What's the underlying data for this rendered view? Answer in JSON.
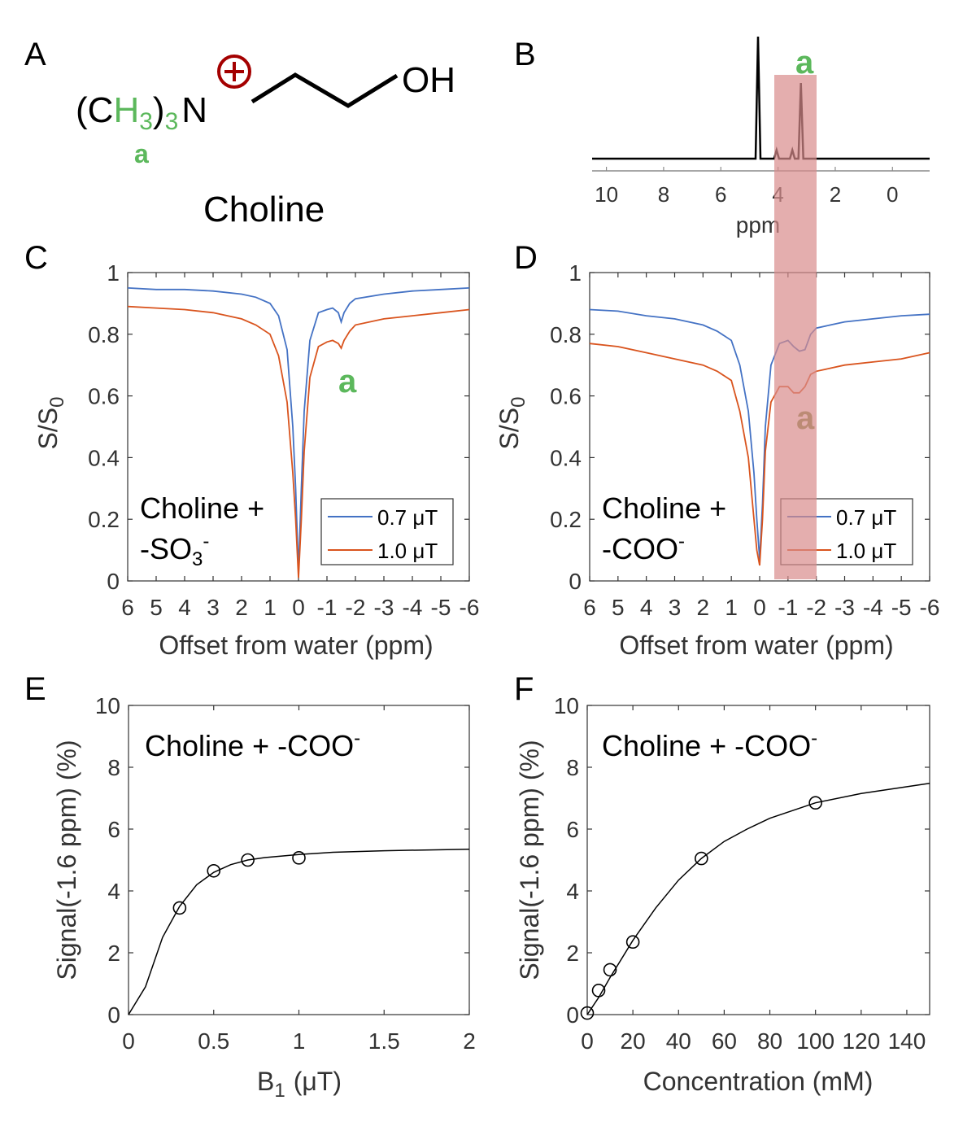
{
  "panel_letters": [
    "A",
    "B",
    "C",
    "D",
    "E",
    "F"
  ],
  "colors": {
    "blue": "#4472c4",
    "red": "#d9541e",
    "green": "#5cb85c",
    "highlight": "#d98c8c",
    "darkred": "#a40000",
    "black": "#000000"
  },
  "molecule": {
    "group_open": "(C",
    "h3": "H",
    "h3_sub": "3",
    "group_close": ")",
    "group_sub": "3",
    "nitrogen": "N",
    "charge_symbol": "⊕",
    "hydroxyl": "OH",
    "label_a": "a",
    "name": "Choline"
  },
  "chart_data": [
    {
      "id": "B",
      "type": "line",
      "title": "",
      "xlabel": "ppm",
      "ylabel": "",
      "xlim": [
        10.5,
        -1.3
      ],
      "xticks": [
        10,
        8,
        6,
        4,
        2,
        0
      ],
      "xtick_labels": [
        "10",
        "8",
        "6",
        "4",
        "2",
        "0"
      ],
      "highlight_range_ppm": [
        4.1,
        2.6
      ],
      "highlight_label": "a",
      "peaks": [
        {
          "ppm": 4.7,
          "height": 1.0
        },
        {
          "ppm": 4.05,
          "height": 0.07
        },
        {
          "ppm": 3.5,
          "height": 0.07
        },
        {
          "ppm": 3.2,
          "height": 0.62
        }
      ]
    },
    {
      "id": "C",
      "type": "line",
      "xlabel": "Offset from water (ppm)",
      "ylabel": "S/S",
      "ylabel_sub": "0",
      "xlim": [
        6,
        -6
      ],
      "ylim": [
        0,
        1
      ],
      "xticks": [
        6,
        5,
        4,
        3,
        2,
        1,
        0,
        -1,
        -2,
        -3,
        -4,
        -5,
        -6
      ],
      "xtick_labels": [
        "6",
        "5",
        "4",
        "3",
        "2",
        "1",
        "0",
        "-1",
        "-2",
        "-3",
        "-4",
        "-5",
        "-6"
      ],
      "yticks": [
        0,
        0.2,
        0.4,
        0.6,
        0.8,
        1
      ],
      "ytick_labels": [
        "0",
        "0.2",
        "0.4",
        "0.6",
        "0.8",
        "1"
      ],
      "annotation": "Choline +",
      "annotation_line2": "-SO",
      "annotation_sub": "3",
      "annotation_sup": "-",
      "peak_label": "a",
      "series": [
        {
          "name": "0.7 μT",
          "color": "#4472c4",
          "x": [
            6,
            5,
            4,
            3,
            2,
            1.5,
            1,
            0.7,
            0.4,
            0.2,
            0.1,
            0,
            -0.1,
            -0.2,
            -0.4,
            -0.7,
            -1,
            -1.2,
            -1.4,
            -1.5,
            -1.6,
            -1.8,
            -2,
            -3,
            -4,
            -5,
            -6
          ],
          "y": [
            0.95,
            0.945,
            0.945,
            0.94,
            0.93,
            0.92,
            0.9,
            0.86,
            0.75,
            0.5,
            0.3,
            0.03,
            0.3,
            0.55,
            0.78,
            0.87,
            0.88,
            0.885,
            0.87,
            0.84,
            0.87,
            0.9,
            0.915,
            0.93,
            0.94,
            0.945,
            0.95
          ]
        },
        {
          "name": "1.0 μT",
          "color": "#d9541e",
          "x": [
            6,
            5,
            4,
            3,
            2,
            1.5,
            1,
            0.7,
            0.4,
            0.2,
            0.1,
            0,
            -0.1,
            -0.2,
            -0.4,
            -0.7,
            -1,
            -1.2,
            -1.4,
            -1.5,
            -1.6,
            -1.8,
            -2,
            -3,
            -4,
            -5,
            -6
          ],
          "y": [
            0.89,
            0.885,
            0.88,
            0.87,
            0.85,
            0.83,
            0.8,
            0.73,
            0.58,
            0.35,
            0.2,
            0.01,
            0.2,
            0.42,
            0.66,
            0.76,
            0.775,
            0.78,
            0.77,
            0.755,
            0.78,
            0.81,
            0.83,
            0.85,
            0.86,
            0.87,
            0.88
          ]
        }
      ]
    },
    {
      "id": "D",
      "type": "line",
      "xlabel": "Offset from water (ppm)",
      "ylabel": "S/S",
      "ylabel_sub": "0",
      "xlim": [
        6,
        -6
      ],
      "ylim": [
        0,
        1
      ],
      "xticks": [
        6,
        5,
        4,
        3,
        2,
        1,
        0,
        -1,
        -2,
        -3,
        -4,
        -5,
        -6
      ],
      "xtick_labels": [
        "6",
        "5",
        "4",
        "3",
        "2",
        "1",
        "0",
        "-1",
        "-2",
        "-3",
        "-4",
        "-5",
        "-6"
      ],
      "yticks": [
        0,
        0.2,
        0.4,
        0.6,
        0.8,
        1
      ],
      "ytick_labels": [
        "0",
        "0.2",
        "0.4",
        "0.6",
        "0.8",
        "1"
      ],
      "annotation": "Choline +",
      "annotation_line2": "-COO",
      "annotation_sup": "-",
      "peak_label": "a",
      "highlight_range_ppm": [
        -0.45,
        -2.0
      ],
      "series": [
        {
          "name": "0.7 μT",
          "color": "#4472c4",
          "x": [
            6,
            5,
            4,
            3,
            2,
            1.5,
            1,
            0.7,
            0.4,
            0.2,
            0.1,
            0,
            -0.1,
            -0.2,
            -0.4,
            -0.7,
            -1,
            -1.2,
            -1.4,
            -1.6,
            -1.8,
            -2,
            -2.5,
            -3,
            -4,
            -5,
            -6
          ],
          "y": [
            0.88,
            0.875,
            0.86,
            0.85,
            0.83,
            0.81,
            0.78,
            0.7,
            0.55,
            0.35,
            0.2,
            0.07,
            0.25,
            0.5,
            0.7,
            0.77,
            0.78,
            0.76,
            0.745,
            0.75,
            0.8,
            0.82,
            0.83,
            0.84,
            0.85,
            0.86,
            0.865
          ]
        },
        {
          "name": "1.0 μT",
          "color": "#d9541e",
          "x": [
            6,
            5,
            4,
            3,
            2,
            1.5,
            1,
            0.7,
            0.4,
            0.2,
            0.1,
            0,
            -0.1,
            -0.2,
            -0.4,
            -0.7,
            -1,
            -1.2,
            -1.4,
            -1.6,
            -1.8,
            -2,
            -2.5,
            -3,
            -4,
            -5,
            -6
          ],
          "y": [
            0.77,
            0.76,
            0.74,
            0.72,
            0.7,
            0.68,
            0.65,
            0.55,
            0.4,
            0.2,
            0.1,
            0.05,
            0.2,
            0.42,
            0.58,
            0.63,
            0.63,
            0.61,
            0.61,
            0.63,
            0.67,
            0.68,
            0.69,
            0.7,
            0.71,
            0.72,
            0.74
          ]
        }
      ]
    },
    {
      "id": "E",
      "type": "scatter",
      "title": "Choline + -COO",
      "title_sup": "-",
      "xlabel": "B",
      "xlabel_sub": "1",
      "xlabel_unit": "(μT)",
      "ylabel": "Signal(-1.6 ppm) (%)",
      "xlim": [
        0,
        2
      ],
      "ylim": [
        0,
        10
      ],
      "xticks": [
        0,
        0.5,
        1,
        1.5,
        2
      ],
      "xtick_labels": [
        "0",
        "0.5",
        "1",
        "1.5",
        "2"
      ],
      "yticks": [
        0,
        2,
        4,
        6,
        8,
        10
      ],
      "ytick_labels": [
        "0",
        "2",
        "4",
        "6",
        "8",
        "10"
      ],
      "points": {
        "x": [
          0.3,
          0.5,
          0.7,
          1.0
        ],
        "y": [
          3.45,
          4.65,
          5.0,
          5.07
        ]
      },
      "fit": {
        "x": [
          0,
          0.1,
          0.2,
          0.3,
          0.4,
          0.5,
          0.6,
          0.7,
          0.8,
          1.0,
          1.2,
          1.5,
          2.0
        ],
        "y": [
          0,
          0.9,
          2.5,
          3.5,
          4.2,
          4.6,
          4.85,
          5.0,
          5.08,
          5.18,
          5.25,
          5.3,
          5.35
        ]
      }
    },
    {
      "id": "F",
      "type": "scatter",
      "title": "Choline + -COO",
      "title_sup": "-",
      "xlabel": "Concentration (mM)",
      "ylabel": "Signal(-1.6 ppm) (%)",
      "xlim": [
        0,
        150
      ],
      "ylim": [
        0,
        10
      ],
      "xticks": [
        0,
        20,
        40,
        60,
        80,
        100,
        120,
        140
      ],
      "xtick_labels": [
        "0",
        "20",
        "40",
        "60",
        "80",
        "100",
        "120",
        "140"
      ],
      "yticks": [
        0,
        2,
        4,
        6,
        8,
        10
      ],
      "ytick_labels": [
        "0",
        "2",
        "4",
        "6",
        "8",
        "10"
      ],
      "points": {
        "x": [
          0,
          5,
          10,
          20,
          50,
          100
        ],
        "y": [
          0.05,
          0.78,
          1.45,
          2.35,
          5.05,
          6.85
        ]
      },
      "fit": {
        "x": [
          0,
          5,
          10,
          20,
          30,
          40,
          50,
          60,
          70,
          80,
          100,
          120,
          150
        ],
        "y": [
          0,
          0.55,
          1.2,
          2.4,
          3.45,
          4.35,
          5.05,
          5.6,
          6.0,
          6.35,
          6.85,
          7.15,
          7.48
        ]
      }
    }
  ]
}
